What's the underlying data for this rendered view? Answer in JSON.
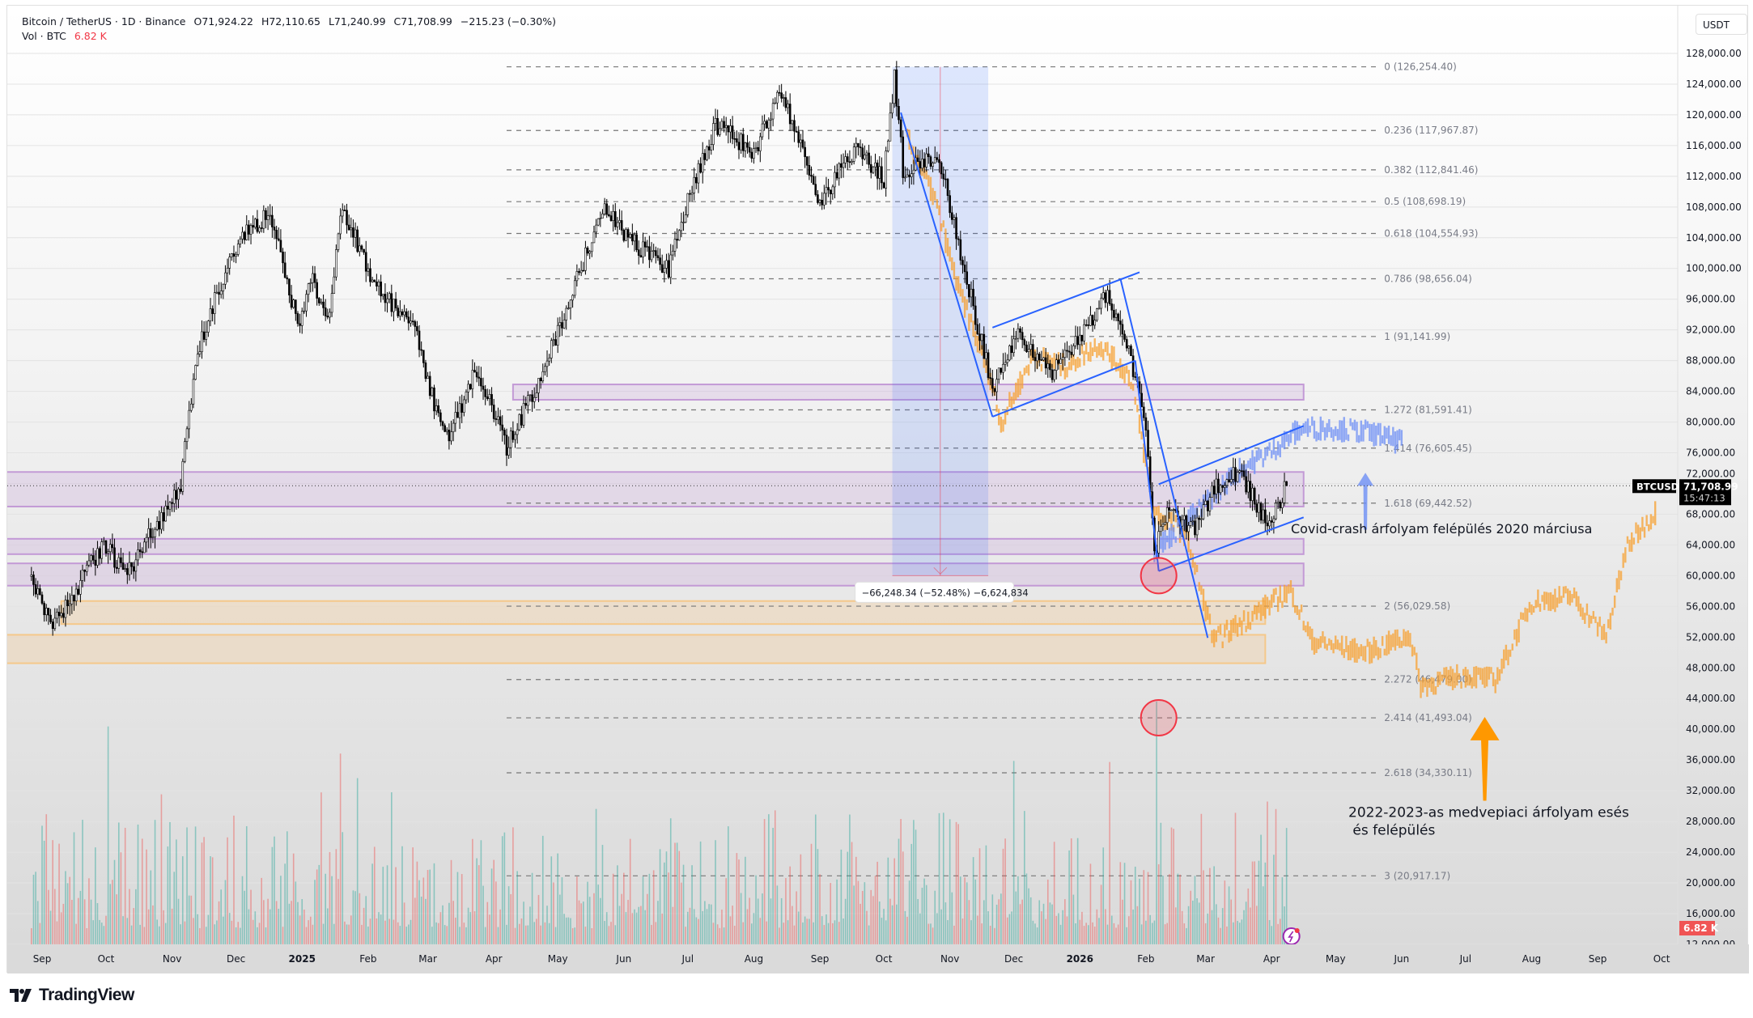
{
  "header": {
    "symbol": "Bitcoin / TetherUS · 1D · Binance",
    "open": "O71,924.22",
    "high": "H72,110.65",
    "low": "L71,240.99",
    "close": "C71,708.99",
    "change": "−215.23 (−0.30%)",
    "vol_label": "Vol · BTC",
    "vol_value": "6.82 K"
  },
  "currency_button": "USDT",
  "branding": "TradingView",
  "colors": {
    "candle": "#000000",
    "orange_overlay": "#f7a030",
    "blue_overlay": "#6d8ff5",
    "trendline": "#2962ff",
    "zone_purple": "#c39ad6",
    "zone_orange": "#f5c88a",
    "vol_up": "#26a69a",
    "vol_down": "#ef5350",
    "circle": "#f23645"
  },
  "chart_data": {
    "type": "candlestick",
    "ylim": [
      12000,
      128000
    ],
    "y_ticks": [
      "128,000.00",
      "124,000.00",
      "120,000.00",
      "116,000.00",
      "112,000.00",
      "108,000.00",
      "104,000.00",
      "100,000.00",
      "96,000.00",
      "92,000.00",
      "88,000.00",
      "84,000.00",
      "80,000.00",
      "76,000.00",
      "72,000.00",
      "68,000.00",
      "64,000.00",
      "60,000.00",
      "56,000.00",
      "52,000.00",
      "48,000.00",
      "44,000.00",
      "40,000.00",
      "36,000.00",
      "32,000.00",
      "28,000.00",
      "24,000.00",
      "20,000.00",
      "16,000.00",
      "12,000.00"
    ],
    "x_ticks": [
      {
        "label": "Sep",
        "date": "2024-09-01"
      },
      {
        "label": "Oct",
        "date": "2024-10-01"
      },
      {
        "label": "Nov",
        "date": "2024-11-01"
      },
      {
        "label": "Dec",
        "date": "2024-12-01"
      },
      {
        "label": "2025",
        "date": "2025-01-01",
        "bold": true
      },
      {
        "label": "Feb",
        "date": "2025-02-01"
      },
      {
        "label": "Mar",
        "date": "2025-03-01"
      },
      {
        "label": "Apr",
        "date": "2025-04-01"
      },
      {
        "label": "May",
        "date": "2025-05-01"
      },
      {
        "label": "Jun",
        "date": "2025-06-01"
      },
      {
        "label": "Jul",
        "date": "2025-07-01"
      },
      {
        "label": "Aug",
        "date": "2025-08-01"
      },
      {
        "label": "Sep",
        "date": "2025-09-01"
      },
      {
        "label": "Oct",
        "date": "2025-10-01"
      },
      {
        "label": "Nov",
        "date": "2025-11-01"
      },
      {
        "label": "Dec",
        "date": "2025-12-01"
      },
      {
        "label": "2026",
        "date": "2026-01-01",
        "bold": true
      },
      {
        "label": "Feb",
        "date": "2026-02-01"
      },
      {
        "label": "Mar",
        "date": "2026-03-01"
      },
      {
        "label": "Apr",
        "date": "2026-04-01"
      },
      {
        "label": "May",
        "date": "2026-05-01"
      },
      {
        "label": "Jun",
        "date": "2026-06-01"
      },
      {
        "label": "Jul",
        "date": "2026-07-01"
      },
      {
        "label": "Aug",
        "date": "2026-08-01"
      },
      {
        "label": "Sep",
        "date": "2026-09-01"
      },
      {
        "label": "Oct",
        "date": "2026-10-01"
      }
    ],
    "price_path": [
      [
        "2024-08-27",
        59900
      ],
      [
        "2024-09-06",
        53300
      ],
      [
        "2024-09-30",
        64200
      ],
      [
        "2024-10-10",
        59900
      ],
      [
        "2024-10-29",
        68600
      ],
      [
        "2024-11-05",
        71500
      ],
      [
        "2024-11-12",
        88300
      ],
      [
        "2024-11-22",
        97000
      ],
      [
        "2024-12-05",
        104300
      ],
      [
        "2024-12-17",
        107200
      ],
      [
        "2024-12-30",
        92600
      ],
      [
        "2025-01-06",
        99200
      ],
      [
        "2025-01-13",
        92600
      ],
      [
        "2025-01-20",
        107900
      ],
      [
        "2025-02-03",
        98400
      ],
      [
        "2025-02-24",
        91200
      ],
      [
        "2025-03-04",
        82400
      ],
      [
        "2025-03-10",
        78100
      ],
      [
        "2025-03-24",
        86800
      ],
      [
        "2025-04-07",
        76600
      ],
      [
        "2025-04-22",
        85400
      ],
      [
        "2025-05-08",
        97000
      ],
      [
        "2025-05-22",
        107900
      ],
      [
        "2025-06-05",
        103500
      ],
      [
        "2025-06-22",
        99900
      ],
      [
        "2025-07-01",
        108600
      ],
      [
        "2025-07-14",
        118800
      ],
      [
        "2025-08-01",
        115200
      ],
      [
        "2025-08-14",
        123200
      ],
      [
        "2025-09-01",
        108600
      ],
      [
        "2025-09-18",
        115900
      ],
      [
        "2025-10-01",
        111500
      ],
      [
        "2025-10-06",
        125400
      ],
      [
        "2025-10-10",
        112800
      ],
      [
        "2025-10-27",
        114400
      ],
      [
        "2025-11-04",
        104300
      ],
      [
        "2025-11-21",
        84500
      ],
      [
        "2025-12-03",
        91900
      ],
      [
        "2025-12-18",
        86100
      ],
      [
        "2026-01-05",
        92600
      ],
      [
        "2026-01-14",
        97000
      ],
      [
        "2026-01-25",
        88300
      ],
      [
        "2026-02-01",
        79500
      ],
      [
        "2026-02-05",
        63000
      ],
      [
        "2026-02-12",
        68600
      ],
      [
        "2026-02-24",
        65700
      ],
      [
        "2026-03-05",
        71500
      ],
      [
        "2026-03-17",
        73700
      ],
      [
        "2026-03-30",
        66400
      ],
      [
        "2026-04-08",
        71709
      ]
    ],
    "overlay_orange": [
      [
        "2025-10-12",
        116600
      ],
      [
        "2025-10-25",
        108600
      ],
      [
        "2025-11-05",
        97000
      ],
      [
        "2025-11-20",
        85400
      ],
      [
        "2025-11-25",
        79500
      ],
      [
        "2025-12-10",
        88300
      ],
      [
        "2025-12-25",
        86800
      ],
      [
        "2026-01-10",
        89800
      ],
      [
        "2026-01-25",
        85400
      ],
      [
        "2026-02-05",
        67900
      ],
      [
        "2026-02-20",
        65000
      ],
      [
        "2026-03-05",
        51100
      ],
      [
        "2026-03-25",
        54800
      ],
      [
        "2026-04-10",
        57700
      ],
      [
        "2026-04-20",
        51100
      ],
      [
        "2026-05-15",
        49600
      ],
      [
        "2026-06-05",
        51800
      ],
      [
        "2026-06-10",
        45300
      ],
      [
        "2026-07-01",
        46700
      ],
      [
        "2026-07-15",
        46000
      ],
      [
        "2026-08-01",
        56200
      ],
      [
        "2026-08-20",
        56900
      ],
      [
        "2026-09-05",
        51800
      ],
      [
        "2026-09-15",
        63500
      ],
      [
        "2026-09-28",
        67900
      ]
    ],
    "overlay_blue": [
      [
        "2026-02-05",
        63000
      ],
      [
        "2026-02-25",
        67900
      ],
      [
        "2026-03-15",
        73000
      ],
      [
        "2026-04-01",
        75900
      ],
      [
        "2026-04-15",
        78800
      ],
      [
        "2026-05-01",
        78800
      ],
      [
        "2026-05-20",
        78100
      ],
      [
        "2026-06-01",
        76900
      ]
    ],
    "fibonacci": [
      {
        "label": "0 (126,254.40)",
        "price": 126254.4
      },
      {
        "label": "0.236 (117,967.87)",
        "price": 117967.87
      },
      {
        "label": "0.382 (112,841.46)",
        "price": 112841.46
      },
      {
        "label": "0.5 (108,698.19)",
        "price": 108698.19
      },
      {
        "label": "0.618 (104,554.93)",
        "price": 104554.93
      },
      {
        "label": "0.786 (98,656.04)",
        "price": 98656.04
      },
      {
        "label": "1 (91,141.99)",
        "price": 91141.99
      },
      {
        "label": "1.272 (81,591.41)",
        "price": 81591.41
      },
      {
        "label": "1.414 (76,605.45)",
        "price": 76605.45
      },
      {
        "label": "1.618 (69,442.52)",
        "price": 69442.52
      },
      {
        "label": "2 (56,029.58)",
        "price": 56029.58
      },
      {
        "label": "2.272 (46,479.00)",
        "price": 46479.0
      },
      {
        "label": "2.414 (41,493.04)",
        "price": 41493.04
      },
      {
        "label": "2.618 (34,330.11)",
        "price": 34330.11
      },
      {
        "label": "3 (20,917.17)",
        "price": 20917.17
      }
    ],
    "zones": [
      {
        "color": "purple",
        "from": "2025-04-10",
        "to": "2026-04-16",
        "top": 84900,
        "bottom": 82900
      },
      {
        "color": "purple",
        "from": "start",
        "to": "2026-04-16",
        "top": 73500,
        "bottom": 69000
      },
      {
        "color": "purple",
        "from": "start",
        "to": "2026-04-16",
        "top": 64800,
        "bottom": 62800
      },
      {
        "color": "purple",
        "from": "start",
        "to": "2026-04-16",
        "top": 61600,
        "bottom": 58700
      },
      {
        "color": "orange",
        "from": "2024-09-10",
        "to": "2026-03-29",
        "top": 56700,
        "bottom": 53700
      },
      {
        "color": "orange",
        "from": "start",
        "to": "2026-03-29",
        "top": 52300,
        "bottom": 48600
      }
    ],
    "trendlines": [
      [
        [
          "2025-10-09",
          120300
        ],
        [
          "2025-11-21",
          80700
        ]
      ],
      [
        [
          "2025-11-21",
          92300
        ],
        [
          "2026-01-29",
          99500
        ]
      ],
      [
        [
          "2025-11-21",
          80700
        ],
        [
          "2026-01-27",
          88000
        ]
      ],
      [
        [
          "2026-01-20",
          98700
        ],
        [
          "2026-03-02",
          51900
        ]
      ],
      [
        [
          "2026-01-27",
          88000
        ],
        [
          "2026-02-07",
          60600
        ]
      ],
      [
        [
          "2026-02-07",
          71900
        ],
        [
          "2026-04-16",
          79500
        ]
      ],
      [
        [
          "2026-02-07",
          60600
        ],
        [
          "2026-04-16",
          67600
        ]
      ]
    ],
    "measure": {
      "from": "2025-10-05",
      "to": "2025-11-19",
      "top": 126254.4,
      "bottom": 60006.06,
      "label": "−66,248.34 (−52.48%) −6,624,834"
    },
    "circles": [
      [
        "2026-02-07",
        60000
      ],
      [
        "2026-02-07",
        41500
      ]
    ],
    "annotations": [
      {
        "text": "Covid-crash árfolyam felépülés 2020 márciusa",
        "date": "2026-04-10",
        "price": 65500
      },
      {
        "text": "2022-2023-as medvepiaci árfolyam esés és felépülés",
        "date": "2026-05-07",
        "price": 28600
      }
    ],
    "arrows": [
      {
        "color": "blue",
        "date": "2026-05-15",
        "from": 66000,
        "to": 73400
      },
      {
        "color": "orange",
        "date": "2026-07-10",
        "from": 30700,
        "to": 41600
      }
    ],
    "last_price": {
      "symbol": "BTCUSDT",
      "price": 71708.99,
      "price_label": "71,708.99",
      "countdown": "15:47:13"
    },
    "volume_label": "6.82 K"
  }
}
